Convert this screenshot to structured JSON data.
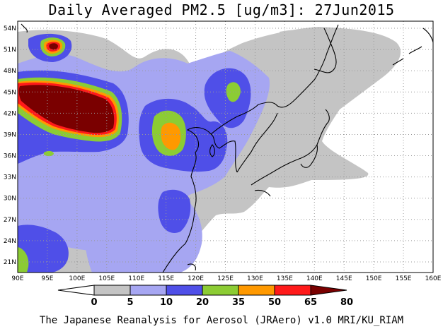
{
  "title": "Daily Averaged PM2.5 [ug/m3]: 27Jun2015",
  "footer": "The Japanese Reanalysis for Aerosol (JRAero) v1.0 MRI/KU_RIAM",
  "map": {
    "lon_range": [
      90,
      160
    ],
    "lat_range": [
      19.5,
      55
    ],
    "lon_ticks": [
      "90E",
      "95E",
      "100E",
      "105E",
      "110E",
      "115E",
      "120E",
      "125E",
      "130E",
      "135E",
      "140E",
      "145E",
      "150E",
      "155E",
      "160E"
    ],
    "lat_ticks": [
      "54N",
      "51N",
      "48N",
      "45N",
      "42N",
      "39N",
      "36N",
      "33N",
      "30N",
      "27N",
      "24N",
      "21N"
    ],
    "grid": true
  },
  "colorbar": {
    "labels": [
      "0",
      "5",
      "10",
      "20",
      "35",
      "50",
      "65",
      "80"
    ],
    "colors": [
      "#ffffff",
      "#c4c4c4",
      "#a6a6f2",
      "#4f4fe8",
      "#8ccc34",
      "#ff9900",
      "#ff1a1a",
      "#7a0000"
    ]
  }
}
